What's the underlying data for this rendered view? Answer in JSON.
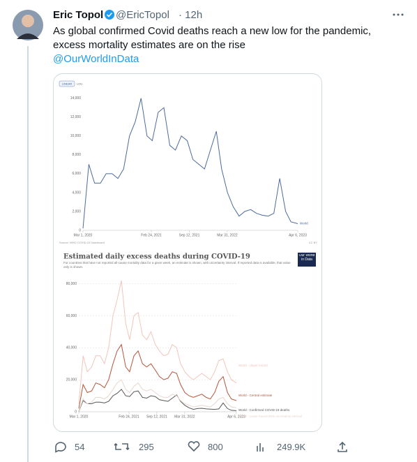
{
  "tweet": {
    "name": "Eric Topol",
    "handle": "@EricTopol",
    "time": "· 12h",
    "text": "As global confirmed Covid deaths reach a new low for the pandemic, excess mortality estimates are on the rise",
    "link": "@OurWorldInData",
    "replies": 54,
    "retweets": 295,
    "likes": 800,
    "views": "249.9K"
  },
  "chart_data": [
    {
      "type": "line",
      "toggle": [
        "LINEAR",
        "LOG"
      ],
      "source": "Source: WHO COVID-19 Dashboard",
      "license": "CC BY",
      "x": [
        "2020-03-01",
        "2020-04-01",
        "2020-05-01",
        "2020-06-01",
        "2020-07-01",
        "2020-08-01",
        "2020-09-01",
        "2020-10-01",
        "2020-11-01",
        "2020-12-01",
        "2021-01-01",
        "2021-02-01",
        "2021-03-01",
        "2021-04-01",
        "2021-05-01",
        "2021-06-01",
        "2021-07-01",
        "2021-08-01",
        "2021-09-01",
        "2021-10-01",
        "2021-11-01",
        "2021-12-01",
        "2022-01-01",
        "2022-02-01",
        "2022-03-01",
        "2022-04-01",
        "2022-05-01",
        "2022-06-01",
        "2022-07-01",
        "2022-08-01",
        "2022-09-01",
        "2022-10-01",
        "2022-11-01",
        "2022-12-01",
        "2023-01-01",
        "2023-02-01",
        "2023-03-01",
        "2023-04-06"
      ],
      "series": [
        {
          "name": "World",
          "color": "#4c6a9c",
          "values": [
            200,
            7000,
            5000,
            5000,
            6000,
            6000,
            5500,
            6500,
            10000,
            11500,
            14000,
            10000,
            9500,
            12500,
            13000,
            9000,
            8500,
            10000,
            9500,
            7500,
            7000,
            6500,
            8500,
            10500,
            6500,
            4000,
            2500,
            1500,
            2000,
            2200,
            1800,
            1600,
            1500,
            1800,
            5500,
            2000,
            900,
            700
          ]
        }
      ],
      "ylim": [
        0,
        14500
      ],
      "yticks": [
        0,
        {
          "value": 2000,
          "label": "2,000"
        },
        {
          "value": 4000,
          "label": "4,000"
        },
        {
          "value": 6000,
          "label": "6,000"
        },
        {
          "value": 8000,
          "label": "8,000"
        },
        {
          "value": 10000,
          "label": "10,000"
        },
        {
          "value": 12000,
          "label": "12,000"
        },
        {
          "value": 14000,
          "label": "14,000"
        }
      ],
      "xticks": [
        {
          "value": "2020-03-01",
          "label": "Mar 1, 2020"
        },
        {
          "value": "2021-02-24",
          "label": "Feb 24, 2021"
        },
        {
          "value": "2021-09-12",
          "label": "Sep 12, 2021"
        },
        {
          "value": "2022-03-31",
          "label": "Mar 31, 2022"
        },
        {
          "value": "2023-04-06",
          "label": "Apr 6, 2023"
        }
      ],
      "grid": false
    },
    {
      "type": "line",
      "title": "Estimated daily excess deaths during COVID-19",
      "subtitle": "For countries that have not reported all-cause mortality data for a given week, an estimate is shown, with uncertainty interval. If reported data is available, that value only is shown.",
      "logo": "Our World in Data",
      "x": [
        "2020-03-01",
        "2020-04-01",
        "2020-05-01",
        "2020-06-01",
        "2020-07-01",
        "2020-08-01",
        "2020-09-01",
        "2020-10-01",
        "2020-11-01",
        "2020-12-01",
        "2021-01-01",
        "2021-02-01",
        "2021-03-01",
        "2021-04-01",
        "2021-05-01",
        "2021-06-01",
        "2021-07-01",
        "2021-08-01",
        "2021-09-01",
        "2021-10-01",
        "2021-11-01",
        "2021-12-01",
        "2022-01-01",
        "2022-02-01",
        "2022-03-01",
        "2022-04-01",
        "2022-05-01",
        "2022-06-01",
        "2022-07-01",
        "2022-08-01",
        "2022-09-01",
        "2022-10-01",
        "2022-11-01",
        "2022-12-01",
        "2023-01-01",
        "2023-02-01",
        "2023-03-01",
        "2023-04-06"
      ],
      "series": [
        {
          "name": "World - Upper bound",
          "color": "#f0c6bc",
          "values": [
            5000,
            35000,
            25000,
            28000,
            35000,
            35000,
            30000,
            40000,
            60000,
            70000,
            82000,
            55000,
            45000,
            60000,
            62000,
            48000,
            45000,
            50000,
            42000,
            38000,
            35000,
            36000,
            42000,
            40000,
            30000,
            25000,
            22000,
            20000,
            22000,
            24000,
            22000,
            20000,
            25000,
            32000,
            33000,
            25000,
            20000,
            18000
          ]
        },
        {
          "name": "World - Central estimate",
          "color": "#b5553a",
          "values": [
            2000,
            17000,
            12000,
            13000,
            18000,
            17000,
            15000,
            20000,
            30000,
            38000,
            42000,
            28000,
            25000,
            35000,
            38000,
            30000,
            28000,
            30000,
            26000,
            22000,
            20000,
            21000,
            25000,
            24000,
            17000,
            12000,
            10000,
            9000,
            10000,
            11000,
            9000,
            8000,
            12000,
            19000,
            22000,
            12000,
            8000,
            7000
          ]
        },
        {
          "name": "World - Confirmed COVID-19 deaths",
          "color": "#555555",
          "values": [
            200,
            7000,
            5000,
            5000,
            6000,
            6000,
            5500,
            6500,
            10000,
            11500,
            14000,
            10000,
            9500,
            12500,
            13000,
            9000,
            8500,
            10000,
            9500,
            7500,
            7000,
            6500,
            8500,
            10500,
            6500,
            4000,
            2500,
            1500,
            2000,
            2200,
            1800,
            1600,
            1500,
            1800,
            5500,
            2000,
            900,
            700
          ]
        },
        {
          "name": "World - Lower bound 95% uncertainty interval",
          "color": "#e6d6cf",
          "values": [
            500,
            8000,
            5000,
            6000,
            9000,
            9000,
            8000,
            10000,
            14000,
            18000,
            20000,
            14000,
            12000,
            16000,
            18000,
            14000,
            13000,
            14000,
            12000,
            10000,
            9000,
            9000,
            11000,
            10000,
            7000,
            5000,
            4000,
            3000,
            3500,
            4000,
            3500,
            3000,
            5000,
            8000,
            9000,
            5000,
            3000,
            2500
          ]
        }
      ],
      "ylim": [
        0,
        82000
      ],
      "yticks": [
        0,
        {
          "value": 20000,
          "label": "20,000"
        },
        {
          "value": 40000,
          "label": "40,000"
        },
        {
          "value": 60000,
          "label": "60,000"
        },
        {
          "value": 80000,
          "label": "80,000"
        }
      ],
      "xticks": [
        {
          "value": "2020-03-01",
          "label": "Mar 1, 2020"
        },
        {
          "value": "2021-02-24",
          "label": "Feb 24, 2021"
        },
        {
          "value": "2021-09-12",
          "label": "Sep 12, 2021"
        },
        {
          "value": "2022-03-31",
          "label": "Mar 31, 2022"
        },
        {
          "value": "2023-04-06",
          "label": "Apr 6, 2023"
        }
      ],
      "grid": true
    }
  ]
}
